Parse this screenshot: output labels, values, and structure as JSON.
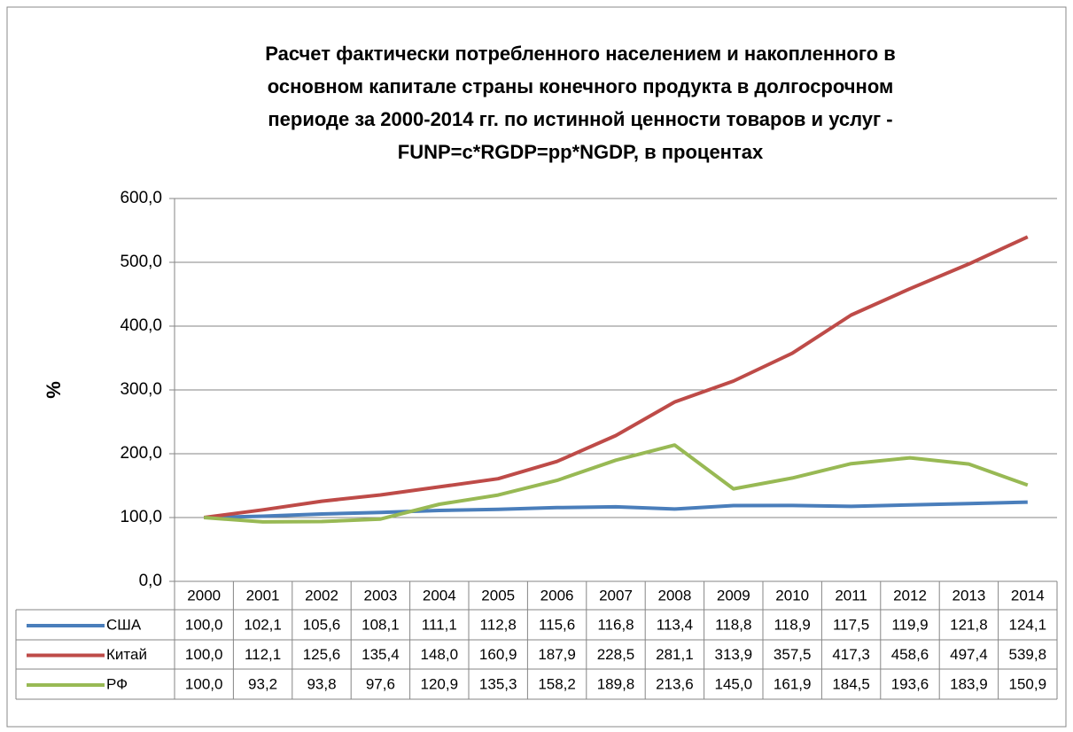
{
  "chart_data": {
    "type": "line",
    "title": [
      "Расчет фактически потребленного населением и накопленного в",
      "основном капитале страны конечного продукта в долгосрочном",
      "периоде за 2000-2014 гг. по истинной ценности  товаров и услуг  -",
      "FUNP=c*RGDP=pp*NGDP, в процентах"
    ],
    "ylabel": "%",
    "categories": [
      "2000",
      "2001",
      "2002",
      "2003",
      "2004",
      "2005",
      "2006",
      "2007",
      "2008",
      "2009",
      "2010",
      "2011",
      "2012",
      "2013",
      "2014"
    ],
    "series": [
      {
        "name": "США",
        "color": "#4a7ebb",
        "values": [
          100.0,
          102.1,
          105.6,
          108.1,
          111.1,
          112.8,
          115.6,
          116.8,
          113.4,
          118.8,
          118.9,
          117.5,
          119.9,
          121.8,
          124.1
        ],
        "value_labels": [
          "100,0",
          "102,1",
          "105,6",
          "108,1",
          "111,1",
          "112,8",
          "115,6",
          "116,8",
          "113,4",
          "118,8",
          "118,9",
          "117,5",
          "119,9",
          "121,8",
          "124,1"
        ]
      },
      {
        "name": "Китай",
        "color": "#be4b48",
        "values": [
          100.0,
          112.1,
          125.6,
          135.4,
          148.0,
          160.9,
          187.9,
          228.5,
          281.1,
          313.9,
          357.5,
          417.3,
          458.6,
          497.4,
          539.8
        ],
        "value_labels": [
          "100,0",
          "112,1",
          "125,6",
          "135,4",
          "148,0",
          "160,9",
          "187,9",
          "228,5",
          "281,1",
          "313,9",
          "357,5",
          "417,3",
          "458,6",
          "497,4",
          "539,8"
        ]
      },
      {
        "name": "РФ",
        "color": "#98b954",
        "values": [
          100.0,
          93.2,
          93.8,
          97.6,
          120.9,
          135.3,
          158.2,
          189.8,
          213.6,
          145.0,
          161.9,
          184.5,
          193.6,
          183.9,
          150.9
        ],
        "value_labels": [
          "100,0",
          "93,2",
          "93,8",
          "97,6",
          "120,9",
          "135,3",
          "158,2",
          "189,8",
          "213,6",
          "145,0",
          "161,9",
          "184,5",
          "193,6",
          "183,9",
          "150,9"
        ]
      }
    ],
    "ylim": [
      0,
      600
    ],
    "yticks": [
      {
        "value": 0,
        "label": "0,0"
      },
      {
        "value": 100,
        "label": "100,0"
      },
      {
        "value": 200,
        "label": "200,0"
      },
      {
        "value": 300,
        "label": "300,0"
      },
      {
        "value": 400,
        "label": "400,0"
      },
      {
        "value": 500,
        "label": "500,0"
      },
      {
        "value": 600,
        "label": "600,0"
      }
    ],
    "grid": true
  }
}
